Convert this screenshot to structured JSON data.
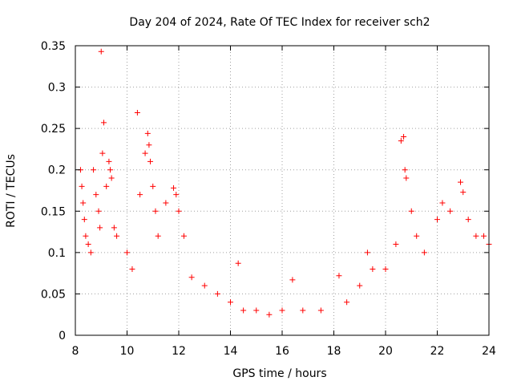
{
  "chart_data": {
    "type": "scatter",
    "title": "Day 204 of 2024, Rate Of TEC Index for receiver sch2",
    "xlabel": "GPS time / hours",
    "ylabel": "ROTI / TECUs",
    "xlim": [
      8,
      24
    ],
    "ylim": [
      0,
      0.35
    ],
    "x_ticks": [
      8,
      10,
      12,
      14,
      16,
      18,
      20,
      22,
      24
    ],
    "y_ticks": [
      0,
      0.05,
      0.1,
      0.15,
      0.2,
      0.25,
      0.3,
      0.35
    ],
    "x_tick_labels": [
      "8",
      "10",
      "12",
      "14",
      "16",
      "18",
      "20",
      "22",
      "24"
    ],
    "y_tick_labels": [
      "0",
      "0.05",
      "0.1",
      "0.15",
      "0.2",
      "0.25",
      "0.3",
      "0.35"
    ],
    "grid": true,
    "marker": "+",
    "color": "#ff0000",
    "series": [
      {
        "name": "ROTI",
        "points": [
          [
            8.2,
            0.2
          ],
          [
            8.25,
            0.18
          ],
          [
            8.3,
            0.16
          ],
          [
            8.35,
            0.14
          ],
          [
            8.4,
            0.12
          ],
          [
            8.5,
            0.11
          ],
          [
            8.6,
            0.1
          ],
          [
            8.7,
            0.2
          ],
          [
            8.8,
            0.17
          ],
          [
            8.9,
            0.15
          ],
          [
            8.95,
            0.13
          ],
          [
            9.0,
            0.343
          ],
          [
            9.05,
            0.22
          ],
          [
            9.1,
            0.257
          ],
          [
            9.2,
            0.18
          ],
          [
            9.3,
            0.21
          ],
          [
            9.35,
            0.2
          ],
          [
            9.4,
            0.19
          ],
          [
            9.5,
            0.13
          ],
          [
            9.6,
            0.12
          ],
          [
            10.0,
            0.1
          ],
          [
            10.2,
            0.08
          ],
          [
            10.4,
            0.269
          ],
          [
            10.5,
            0.17
          ],
          [
            10.7,
            0.22
          ],
          [
            10.8,
            0.244
          ],
          [
            10.85,
            0.23
          ],
          [
            10.9,
            0.21
          ],
          [
            11.0,
            0.18
          ],
          [
            11.1,
            0.15
          ],
          [
            11.2,
            0.12
          ],
          [
            11.5,
            0.16
          ],
          [
            11.8,
            0.178
          ],
          [
            11.9,
            0.17
          ],
          [
            12.0,
            0.15
          ],
          [
            12.2,
            0.12
          ],
          [
            12.5,
            0.07
          ],
          [
            13.0,
            0.06
          ],
          [
            13.5,
            0.05
          ],
          [
            14.0,
            0.04
          ],
          [
            14.3,
            0.087
          ],
          [
            14.5,
            0.03
          ],
          [
            15.0,
            0.03
          ],
          [
            15.5,
            0.025
          ],
          [
            16.0,
            0.03
          ],
          [
            16.4,
            0.067
          ],
          [
            16.8,
            0.03
          ],
          [
            17.5,
            0.03
          ],
          [
            18.2,
            0.072
          ],
          [
            18.5,
            0.04
          ],
          [
            19.0,
            0.06
          ],
          [
            19.3,
            0.1
          ],
          [
            19.5,
            0.08
          ],
          [
            20.0,
            0.08
          ],
          [
            20.4,
            0.11
          ],
          [
            20.6,
            0.235
          ],
          [
            20.7,
            0.24
          ],
          [
            20.75,
            0.2
          ],
          [
            20.8,
            0.19
          ],
          [
            21.0,
            0.15
          ],
          [
            21.2,
            0.12
          ],
          [
            21.5,
            0.1
          ],
          [
            22.0,
            0.14
          ],
          [
            22.2,
            0.16
          ],
          [
            22.5,
            0.15
          ],
          [
            22.9,
            0.185
          ],
          [
            23.0,
            0.173
          ],
          [
            23.2,
            0.14
          ],
          [
            23.5,
            0.12
          ],
          [
            23.8,
            0.12
          ],
          [
            24.0,
            0.11
          ]
        ]
      }
    ]
  }
}
